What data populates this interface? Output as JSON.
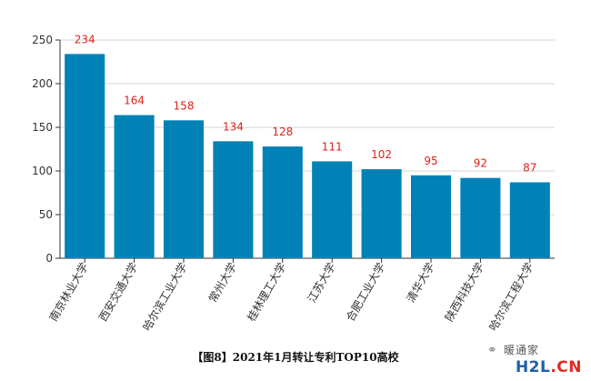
{
  "chart_data": {
    "type": "bar",
    "categories": [
      "南京林业大学",
      "西安交通大学",
      "哈尔滨工业大学",
      "常州大学",
      "桂林理工大学",
      "江苏大学",
      "合肥工业大学",
      "清华大学",
      "陕西科技大学",
      "哈尔滨工程大学"
    ],
    "values": [
      234,
      164,
      158,
      134,
      128,
      111,
      102,
      95,
      92,
      87
    ],
    "ylim": [
      0,
      250
    ],
    "yticks": [
      0,
      50,
      100,
      150,
      200,
      250
    ],
    "grid": true,
    "bar_color": "#0082b6",
    "label_color": "#e0231b"
  },
  "caption": "【图8】2021年1月转让专利TOP10高校",
  "watermark": {
    "text": "暖通家",
    "logo_main": "H2L",
    "logo_accent": ".CN"
  }
}
